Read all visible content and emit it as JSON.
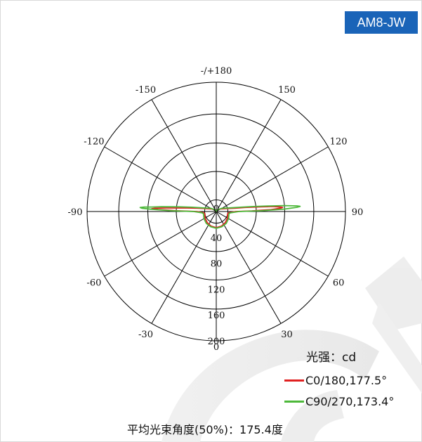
{
  "badge": "AM8-JW",
  "chart_data": {
    "type": "polar",
    "unit_label": "光强：cd",
    "radial_max": 200,
    "radial_ticks": [
      "0",
      "40",
      "80",
      "120",
      "160",
      "200"
    ],
    "bottom_label": "0",
    "angle_labels": [
      {
        "text": "-/+180",
        "angle": 180
      },
      {
        "text": "-150",
        "angle": -150
      },
      {
        "text": "150",
        "angle": 150
      },
      {
        "text": "-120",
        "angle": -120
      },
      {
        "text": "120",
        "angle": 120
      },
      {
        "text": "-90",
        "angle": -90
      },
      {
        "text": "90",
        "angle": 90
      },
      {
        "text": "-60",
        "angle": -60
      },
      {
        "text": "60",
        "angle": 60
      },
      {
        "text": "-30",
        "angle": -30
      },
      {
        "text": "30",
        "angle": 30
      }
    ],
    "series": [
      {
        "name": "C0/180,177.5°",
        "color": "#e02020",
        "points": [
          [
            -180,
            0
          ],
          [
            -150,
            3
          ],
          [
            -120,
            8
          ],
          [
            -105,
            18
          ],
          [
            -100,
            30
          ],
          [
            -97,
            45
          ],
          [
            -95,
            62
          ],
          [
            -94,
            78
          ],
          [
            -93.5,
            88
          ],
          [
            -93,
            95
          ],
          [
            -92.5,
            100
          ],
          [
            -92,
            90
          ],
          [
            -91,
            60
          ],
          [
            -90,
            30
          ],
          [
            -85,
            20
          ],
          [
            -80,
            18
          ],
          [
            -60,
            20
          ],
          [
            -40,
            22
          ],
          [
            -20,
            24
          ],
          [
            0,
            25
          ],
          [
            20,
            24
          ],
          [
            40,
            22
          ],
          [
            60,
            20
          ],
          [
            80,
            18
          ],
          [
            85,
            20
          ],
          [
            90,
            30
          ],
          [
            91,
            55
          ],
          [
            92,
            85
          ],
          [
            93,
            100
          ],
          [
            93.5,
            103
          ],
          [
            94,
            100
          ],
          [
            95,
            88
          ],
          [
            96,
            70
          ],
          [
            98,
            45
          ],
          [
            100,
            30
          ],
          [
            105,
            18
          ],
          [
            120,
            8
          ],
          [
            150,
            3
          ],
          [
            180,
            0
          ]
        ]
      },
      {
        "name": "C90/270,173.4°",
        "color": "#4db83a",
        "points": [
          [
            -180,
            0
          ],
          [
            -150,
            3
          ],
          [
            -120,
            10
          ],
          [
            -105,
            22
          ],
          [
            -100,
            38
          ],
          [
            -97,
            60
          ],
          [
            -95,
            85
          ],
          [
            -94,
            100
          ],
          [
            -93.5,
            112
          ],
          [
            -93,
            118
          ],
          [
            -92.5,
            115
          ],
          [
            -92,
            100
          ],
          [
            -91,
            70
          ],
          [
            -90,
            35
          ],
          [
            -85,
            22
          ],
          [
            -80,
            20
          ],
          [
            -60,
            22
          ],
          [
            -40,
            24
          ],
          [
            -20,
            25
          ],
          [
            0,
            26
          ],
          [
            20,
            25
          ],
          [
            40,
            24
          ],
          [
            60,
            22
          ],
          [
            80,
            20
          ],
          [
            85,
            22
          ],
          [
            90,
            35
          ],
          [
            91,
            70
          ],
          [
            92,
            105
          ],
          [
            93,
            125
          ],
          [
            93.5,
            130
          ],
          [
            94,
            125
          ],
          [
            95,
            105
          ],
          [
            96,
            82
          ],
          [
            98,
            55
          ],
          [
            100,
            38
          ],
          [
            105,
            22
          ],
          [
            120,
            10
          ],
          [
            150,
            3
          ],
          [
            180,
            0
          ]
        ]
      }
    ]
  },
  "beam_angle_text": "平均光束角度(50%)：175.4度"
}
